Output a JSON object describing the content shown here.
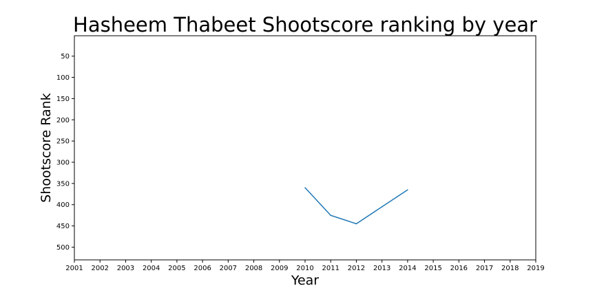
{
  "chart_data": {
    "type": "line",
    "title": "Hasheem Thabeet Shootscore ranking by year",
    "xlabel": "Year",
    "ylabel": "Shootscore Rank",
    "xlim": [
      2001,
      2019
    ],
    "ylim": [
      530,
      2
    ],
    "y_inverted": true,
    "xticks": [
      "2001",
      "2002",
      "2003",
      "2004",
      "2005",
      "2006",
      "2007",
      "2008",
      "2009",
      "2010",
      "2011",
      "2012",
      "2013",
      "2014",
      "2015",
      "2016",
      "2017",
      "2018",
      "2019"
    ],
    "yticks": [
      50,
      100,
      150,
      200,
      250,
      300,
      350,
      400,
      450,
      500
    ],
    "grid": false,
    "series": [
      {
        "color": "#1f77b4",
        "x": [
          2010,
          2011,
          2012,
          2013,
          2014
        ],
        "y": [
          360,
          425,
          445,
          405,
          365
        ]
      }
    ]
  }
}
